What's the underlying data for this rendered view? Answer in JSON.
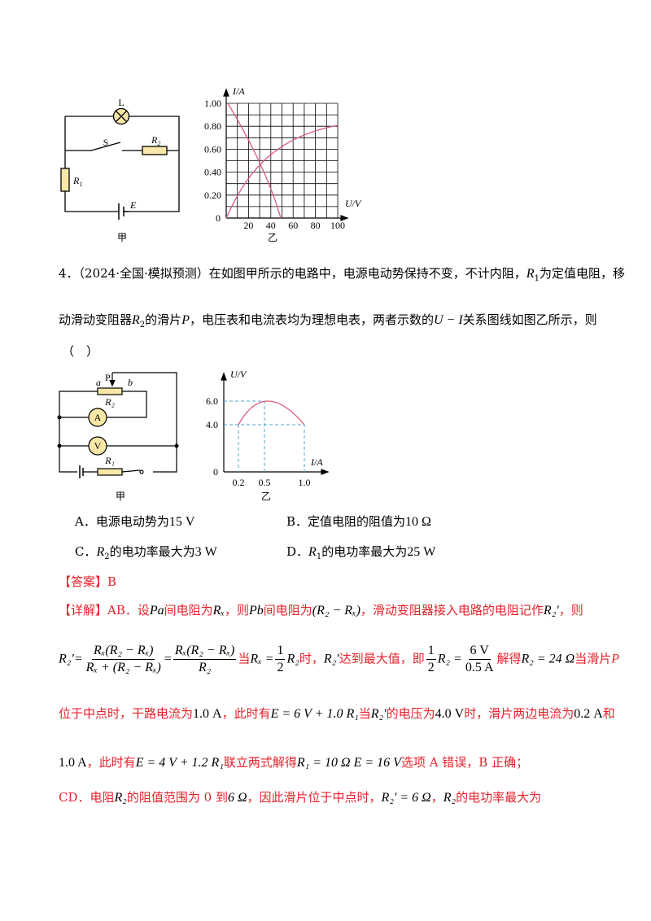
{
  "figure1": {
    "circuit": {
      "lamp": "L",
      "switch": "S",
      "r2": "R",
      "r2_sub": "2",
      "r1": "R",
      "r1_sub": "1",
      "source": "E",
      "caption": "甲"
    },
    "graph": {
      "y_axis": "I/A",
      "x_axis": "U/V",
      "yticks": [
        "1.00",
        "0.80",
        "0.60",
        "0.40",
        "0.20"
      ],
      "origin": "0",
      "xticks": [
        "20",
        "40",
        "60",
        "80",
        "100"
      ],
      "caption": "乙"
    }
  },
  "question": {
    "line1": [
      "4．",
      "（2024·全国·模拟预测）",
      "在如图甲所示的电路中，电源电动势保持不变，不计内阻，",
      "R",
      "1",
      "为定值电阻，移"
    ],
    "line2": [
      "动滑动变阻器",
      "R",
      "2",
      "的滑片",
      "P",
      "，电压表和电流表均为理想电表，两者示数的",
      "U − I",
      "关系图线如图乙所示，则"
    ],
    "line3": "（　）"
  },
  "figure2": {
    "circuit": {
      "slider": "P",
      "a": "a",
      "b": "b",
      "r2": "R₂",
      "ammeter": "A",
      "voltmeter": "V",
      "r1": "R₁",
      "caption": "甲"
    },
    "graph": {
      "y_axis": "U/V",
      "x_axis": "I/A",
      "yticks": [
        "6.0",
        "4.0"
      ],
      "origin": "0",
      "xticks": [
        "0.2",
        "0.5",
        "1.0"
      ],
      "caption": "乙"
    }
  },
  "options": [
    [
      "A．",
      "电源电动势为",
      "15 V"
    ],
    [
      "B．",
      "定值电阻的阻值为",
      "10 Ω"
    ],
    [
      "C．",
      "R",
      "2",
      "的电功率最大为",
      "3 W"
    ],
    [
      "D．",
      "R",
      "1",
      "的电功率最大为",
      "25 W"
    ]
  ],
  "answer": [
    "【答案】",
    "B"
  ],
  "explanation": {
    "line1": [
      "【详解】AB．设",
      "Pa",
      "间电阻为",
      "Rₓ",
      "，则",
      "Pb",
      "间电阻为",
      "(R₂ − Rₓ)",
      "，滑动变阻器接入电路的电阻记作",
      "R₂′",
      "，则"
    ],
    "line2": [
      "R₂′=",
      "Rₓ(R₂ − Rₓ)",
      "Rₓ + (R₂ − Rₓ)",
      "=",
      "Rₓ(R₂ − Rₓ)",
      "R₂",
      "当",
      "Rₓ =",
      "1",
      "2",
      "R₂",
      "时，",
      "R₂′",
      "达到最大值，即",
      "1",
      "2",
      "R₂ =",
      "6 V",
      "0.5 A",
      "解得",
      "R₂ = 24 Ω",
      "当滑片",
      "P"
    ],
    "line3": [
      "位于中点时，干路电流为",
      "1.0 A",
      "，此时有",
      "E = 6 V + 1.0 R₁",
      "当",
      "R₂′",
      "的电压为",
      "4.0 V",
      "时，滑片两边电流为",
      "0.2 A",
      "和"
    ],
    "line4": [
      "1.0 A",
      "，此时有",
      "E = 4 V + 1.2 R₁",
      "联立两式解得",
      "R₁ = 10 Ω  E = 16 V",
      "选项 A 错误，B 正确；"
    ],
    "line5": [
      "CD．电阻",
      "R₂",
      "的阻值范围为 0 到",
      "6 Ω",
      "，因此滑片位于中点时，",
      "R₂′ = 6 Ω",
      "，",
      "R₂",
      "的电功率最大为"
    ]
  }
}
